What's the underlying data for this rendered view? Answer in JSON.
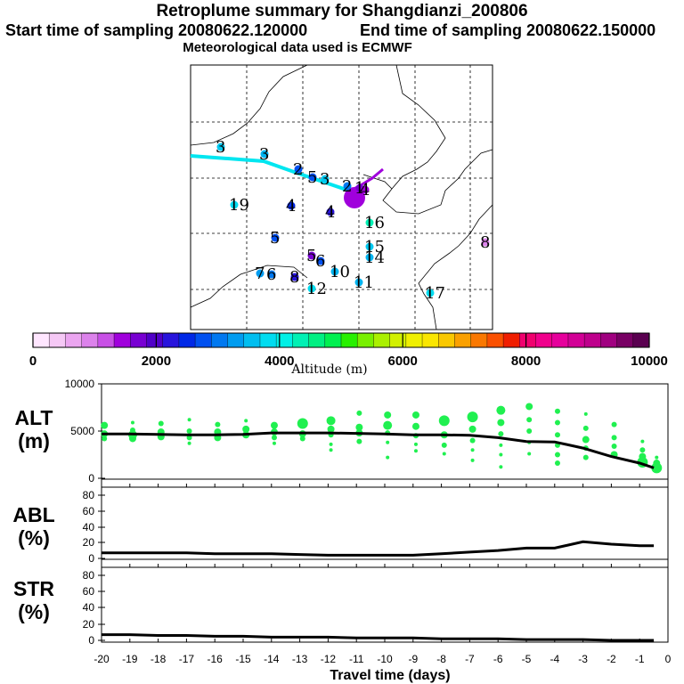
{
  "header": {
    "title": "Retroplume summary for Shangdianzi_200806",
    "start": "Start time of sampling 20080622.120000",
    "end": "End time of sampling 20080622.150000",
    "met": "Meteorological data used is ECMWF"
  },
  "colorbar": {
    "title": "Altitude (m)",
    "ticks": [
      "0",
      "2000",
      "4000",
      "6000",
      "8000",
      "10000"
    ],
    "colors": [
      "#ffe6ff",
      "#f5c8f5",
      "#eba5f0",
      "#dc82eb",
      "#c850e6",
      "#a000dc",
      "#7800d2",
      "#5000c8",
      "#2814dc",
      "#0028e6",
      "#0050f0",
      "#0078f0",
      "#009cf0",
      "#00bef0",
      "#00dcf0",
      "#00f0e6",
      "#00f0b4",
      "#00f082",
      "#00f050",
      "#28f000",
      "#78f000",
      "#aaf000",
      "#d2f000",
      "#f0f000",
      "#fae600",
      "#fac800",
      "#faa000",
      "#fa7800",
      "#fa5000",
      "#f01e00",
      "#f0006e",
      "#f0008c",
      "#e6009c",
      "#d20096",
      "#be008c",
      "#a00080",
      "#780064",
      "#5a0050"
    ]
  },
  "map": {
    "points": [
      {
        "label": "3",
        "color": "#00c8f0"
      },
      {
        "label": "3",
        "color": "#00b4f0"
      },
      {
        "label": "2",
        "color": "#0050f0"
      },
      {
        "label": "5",
        "color": "#0050f0"
      },
      {
        "label": "3",
        "color": "#00c8f0"
      },
      {
        "label": "2",
        "color": "#0078f0"
      },
      {
        "label": "1",
        "color": "#7800d2"
      },
      {
        "label": "4",
        "color": "#a000dc"
      },
      {
        "label": "19",
        "color": "#00dcf0"
      },
      {
        "label": "4",
        "color": "#0028e6"
      },
      {
        "label": "4",
        "color": "#2814dc"
      },
      {
        "label": "16",
        "color": "#00f0b4"
      },
      {
        "label": "5",
        "color": "#0050f0"
      },
      {
        "label": "15",
        "color": "#00c8f0"
      },
      {
        "label": "14",
        "color": "#00b4f0"
      },
      {
        "label": "5",
        "color": "#7800d2"
      },
      {
        "label": "6",
        "color": "#0050f0"
      },
      {
        "label": "10",
        "color": "#00b4f0"
      },
      {
        "label": "6",
        "color": "#0078f0"
      },
      {
        "label": "7",
        "color": "#009cf0"
      },
      {
        "label": "8",
        "color": "#2814dc"
      },
      {
        "label": "12",
        "color": "#00dcf0"
      },
      {
        "label": "11",
        "color": "#00b4f0"
      },
      {
        "label": "17",
        "color": "#00dcf0"
      },
      {
        "label": "8",
        "color": "#dc82eb"
      }
    ]
  },
  "chart_data": [
    {
      "type": "line",
      "name": "ALT",
      "ylabel": "ALT\n(m)",
      "ylim": [
        0,
        10000
      ],
      "yticks": [
        "0",
        "5000",
        "10000"
      ],
      "x": [
        -20,
        -19,
        -18,
        -17,
        -16,
        -15,
        -14,
        -13,
        -12,
        -11,
        -10,
        -9,
        -8,
        -7,
        -6,
        -5,
        -4,
        -3,
        -2,
        -1,
        -0.5
      ],
      "values": [
        4700,
        4700,
        4650,
        4600,
        4600,
        4650,
        4800,
        4800,
        4800,
        4750,
        4700,
        4600,
        4600,
        4550,
        4300,
        3900,
        3850,
        3200,
        2300,
        1600,
        1100
      ],
      "scatter": [
        {
          "x": -19.9,
          "ys": [
            5600,
            4700,
            4200
          ],
          "sizes": [
            4,
            4,
            3
          ]
        },
        {
          "x": -18.9,
          "ys": [
            5900,
            5100,
            4600,
            4200
          ],
          "sizes": [
            2,
            3,
            5,
            4
          ]
        },
        {
          "x": -17.9,
          "ys": [
            5800,
            4900,
            4400
          ],
          "sizes": [
            3,
            4,
            4
          ]
        },
        {
          "x": -16.9,
          "ys": [
            6200,
            5000,
            4300,
            3700
          ],
          "sizes": [
            2,
            3,
            3,
            2
          ]
        },
        {
          "x": -15.9,
          "ys": [
            5700,
            4900,
            4300
          ],
          "sizes": [
            3,
            4,
            4
          ]
        },
        {
          "x": -14.9,
          "ys": [
            6100,
            5200,
            4600
          ],
          "sizes": [
            2,
            4,
            4
          ]
        },
        {
          "x": -13.9,
          "ys": [
            5600,
            4900,
            4300,
            3700
          ],
          "sizes": [
            4,
            4,
            3,
            2
          ]
        },
        {
          "x": -12.9,
          "ys": [
            5800,
            4700,
            4200
          ],
          "sizes": [
            6,
            4,
            3
          ]
        },
        {
          "x": -11.9,
          "ys": [
            6100,
            5200,
            4600,
            3600,
            3000
          ],
          "sizes": [
            5,
            4,
            3,
            2,
            2
          ]
        },
        {
          "x": -10.9,
          "ys": [
            6900,
            5400,
            4800,
            3900
          ],
          "sizes": [
            3,
            4,
            4,
            3
          ]
        },
        {
          "x": -9.9,
          "ys": [
            6700,
            5600,
            4800,
            3800,
            2200
          ],
          "sizes": [
            4,
            5,
            3,
            2,
            2
          ]
        },
        {
          "x": -8.9,
          "ys": [
            6700,
            5500,
            4500,
            3600,
            2900
          ],
          "sizes": [
            4,
            4,
            3,
            2,
            2
          ]
        },
        {
          "x": -7.9,
          "ys": [
            6100,
            4600,
            3500,
            2600
          ],
          "sizes": [
            6,
            4,
            3,
            2
          ]
        },
        {
          "x": -6.9,
          "ys": [
            6500,
            5200,
            4000,
            3000,
            1900
          ],
          "sizes": [
            6,
            4,
            3,
            2,
            2
          ]
        },
        {
          "x": -5.9,
          "ys": [
            7200,
            5900,
            4700,
            3500,
            2500,
            1200
          ],
          "sizes": [
            5,
            4,
            3,
            2,
            2,
            2
          ]
        },
        {
          "x": -4.9,
          "ys": [
            7600,
            6200,
            5000,
            3800,
            2600
          ],
          "sizes": [
            4,
            3,
            3,
            2,
            2
          ]
        },
        {
          "x": -3.9,
          "ys": [
            7100,
            5900,
            4600,
            3500,
            2500,
            1600
          ],
          "sizes": [
            3,
            3,
            3,
            3,
            3,
            3
          ]
        },
        {
          "x": -2.9,
          "ys": [
            6800,
            5300,
            4100,
            3200,
            2200
          ],
          "sizes": [
            2,
            3,
            4,
            3,
            3
          ]
        },
        {
          "x": -1.9,
          "ys": [
            5700,
            4300,
            3400,
            2500
          ],
          "sizes": [
            3,
            3,
            3,
            4
          ]
        },
        {
          "x": -0.9,
          "ys": [
            3900,
            3000,
            2300,
            1700
          ],
          "sizes": [
            2,
            3,
            4,
            6
          ]
        },
        {
          "x": -0.4,
          "ys": [
            2200,
            1600,
            1100
          ],
          "sizes": [
            2,
            4,
            6
          ]
        }
      ]
    },
    {
      "type": "line",
      "name": "ABL",
      "ylabel": "ABL\n(%)",
      "ylim": [
        0,
        90
      ],
      "yticks": [
        "0",
        "20",
        "40",
        "60",
        "80"
      ],
      "x": [
        -20,
        -19,
        -18,
        -17,
        -16,
        -15,
        -14,
        -13,
        -12,
        -11,
        -10,
        -9,
        -8,
        -7,
        -6,
        -5,
        -4,
        -3,
        -2,
        -1,
        -0.5
      ],
      "values": [
        7,
        7,
        7,
        7,
        6,
        6,
        6,
        5,
        4,
        4,
        4,
        4,
        6,
        8,
        10,
        13,
        13,
        21,
        18,
        16,
        16
      ]
    },
    {
      "type": "line",
      "name": "STR",
      "ylabel": "STR\n(%)",
      "ylim": [
        0,
        90
      ],
      "yticks": [
        "0",
        "20",
        "40",
        "60",
        "80"
      ],
      "x": [
        -20,
        -19,
        -18,
        -17,
        -16,
        -15,
        -14,
        -13,
        -12,
        -11,
        -10,
        -9,
        -8,
        -7,
        -6,
        -5,
        -4,
        -3,
        -2,
        -1,
        -0.5
      ],
      "values": [
        7,
        7,
        6,
        6,
        5,
        5,
        4,
        4,
        4,
        3,
        3,
        3,
        2,
        2,
        2,
        1,
        1,
        1,
        0,
        0,
        0
      ]
    }
  ],
  "axes": {
    "xticks": [
      "-20",
      "-19",
      "-18",
      "-17",
      "-16",
      "-15",
      "-14",
      "-13",
      "-12",
      "-11",
      "-10",
      "-9",
      "-8",
      "-7",
      "-6",
      "-5",
      "-4",
      "-3",
      "-2",
      "-1",
      "0"
    ],
    "xlabel": "Travel time (days)",
    "alt_label": "ALT\n(m)",
    "abl_label": "ABL\n(%)",
    "str_label": "STR\n(%)"
  }
}
